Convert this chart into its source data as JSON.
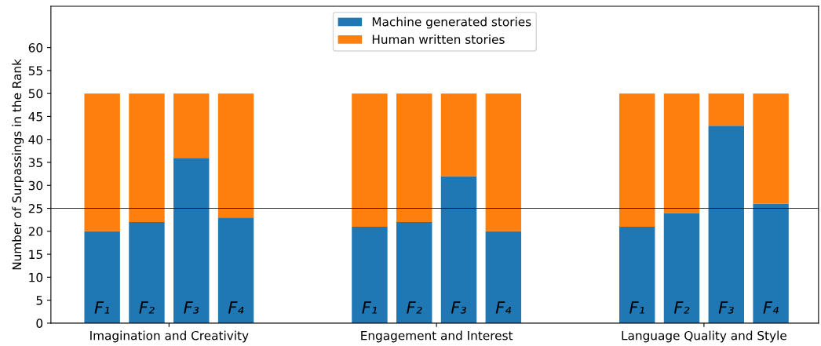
{
  "chart_data": {
    "type": "bar",
    "stacked": true,
    "ylabel": "Number of Surpassings in the Rank",
    "categories": [
      "F₁",
      "F₂",
      "F₃",
      "F₄",
      null,
      null,
      "F₁",
      "F₂",
      "F₃",
      "F₄",
      null,
      null,
      "F₁",
      "F₂",
      "F₃",
      "F₄"
    ],
    "series": [
      {
        "name": "Machine generated stories",
        "color": "#1f77b4",
        "values": [
          20,
          22,
          36,
          23,
          null,
          null,
          21,
          22,
          32,
          20,
          null,
          null,
          21,
          24,
          43,
          26
        ]
      },
      {
        "name": "Human written stories",
        "color": "#ff7f0e",
        "values": [
          30,
          28,
          14,
          27,
          null,
          null,
          29,
          28,
          18,
          30,
          null,
          null,
          29,
          26,
          7,
          24
        ]
      }
    ],
    "annotations": [
      "Imagination and Creativity",
      "Engagement and Interest",
      "Language Quality and Style"
    ],
    "ylim": [
      0,
      69
    ],
    "yticks": [
      0,
      5,
      10,
      15,
      20,
      25,
      30,
      35,
      40,
      45,
      50,
      55,
      60
    ],
    "ref_lines": [
      {
        "axis": "y",
        "value": 25,
        "color": "#000000"
      }
    ],
    "legend": "top",
    "grid": false
  }
}
